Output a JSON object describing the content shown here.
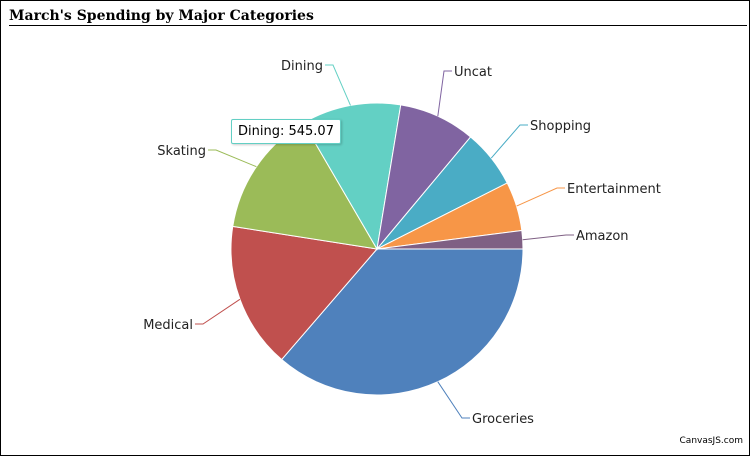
{
  "chart_data": {
    "type": "pie",
    "title": "March's Spending by Major Categories",
    "categories": [
      "Groceries",
      "Medical",
      "Skating",
      "Dining",
      "Uncat",
      "Shopping",
      "Entertainment",
      "Amazon"
    ],
    "values": [
      1800,
      800,
      700,
      545.07,
      420,
      320,
      270,
      100
    ],
    "colors": [
      "#4f81bc",
      "#c0504e",
      "#9bbb58",
      "#63d0c4",
      "#8064a1",
      "#4aacc5",
      "#f79647",
      "#7f6084"
    ],
    "legend": "none"
  },
  "tooltip": {
    "text": "Dining: 545.07"
  },
  "credit": "CanvasJS.com"
}
